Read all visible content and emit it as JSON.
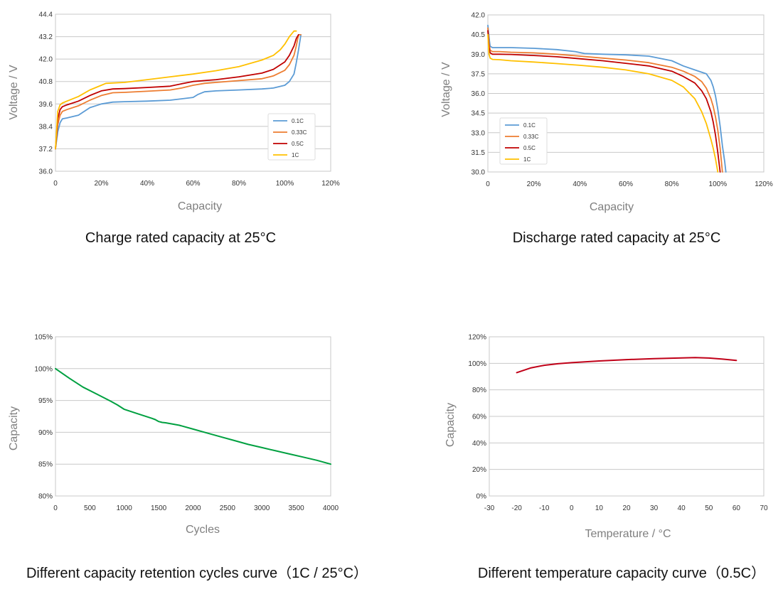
{
  "chart_data": [
    {
      "type": "line",
      "title": "",
      "caption": "Charge rated capacity at 25°C",
      "xlabel": "Capacity",
      "ylabel": "Voltage / V",
      "xlim": [
        0,
        120
      ],
      "ylim": [
        36.0,
        44.4
      ],
      "xticks": [
        "0",
        "20%",
        "40%",
        "60%",
        "80%",
        "100%",
        "120%"
      ],
      "yticks": [
        "36.0",
        "37.2",
        "38.4",
        "39.6",
        "40.8",
        "42.0",
        "43.2",
        "44.4"
      ],
      "grid": true,
      "legend": "bottom-right",
      "series": [
        {
          "name": "0.1C",
          "color": "#5b9bd5",
          "x": [
            0,
            1,
            2,
            3,
            5,
            10,
            15,
            20,
            25,
            30,
            40,
            50,
            60,
            62,
            65,
            70,
            80,
            90,
            95,
            100,
            102,
            104,
            105,
            106,
            107,
            107
          ],
          "y": [
            37.2,
            38.1,
            38.6,
            38.8,
            38.85,
            39.0,
            39.4,
            39.6,
            39.7,
            39.72,
            39.75,
            39.8,
            39.95,
            40.1,
            40.25,
            40.3,
            40.35,
            40.4,
            40.45,
            40.6,
            40.8,
            41.2,
            41.8,
            42.5,
            43.3,
            43.3
          ]
        },
        {
          "name": "0.33C",
          "color": "#ed7d31",
          "x": [
            0,
            1,
            2,
            3,
            5,
            10,
            15,
            20,
            25,
            30,
            40,
            50,
            55,
            60,
            65,
            70,
            80,
            90,
            95,
            100,
            102,
            104,
            105,
            106,
            107
          ],
          "y": [
            37.2,
            38.5,
            39.0,
            39.2,
            39.3,
            39.5,
            39.8,
            40.05,
            40.2,
            40.22,
            40.28,
            40.35,
            40.45,
            40.6,
            40.7,
            40.75,
            40.85,
            40.95,
            41.1,
            41.4,
            41.7,
            42.2,
            42.7,
            43.3,
            43.3
          ]
        },
        {
          "name": "0.5C",
          "color": "#c00000",
          "x": [
            0,
            1,
            2,
            3,
            5,
            10,
            15,
            20,
            25,
            30,
            40,
            50,
            55,
            60,
            65,
            70,
            80,
            90,
            95,
            100,
            102,
            104,
            105,
            106
          ],
          "y": [
            37.2,
            38.8,
            39.3,
            39.45,
            39.55,
            39.75,
            40.05,
            40.3,
            40.4,
            40.42,
            40.48,
            40.55,
            40.68,
            40.8,
            40.85,
            40.9,
            41.05,
            41.25,
            41.45,
            41.85,
            42.2,
            42.7,
            43.1,
            43.3
          ]
        },
        {
          "name": "1C",
          "color": "#ffc000",
          "x": [
            0,
            1,
            2,
            3,
            5,
            10,
            15,
            20,
            22,
            30,
            40,
            50,
            60,
            70,
            80,
            90,
            95,
            98,
            100,
            102,
            104,
            105
          ],
          "y": [
            37.2,
            39.2,
            39.55,
            39.65,
            39.75,
            40.0,
            40.35,
            40.6,
            40.7,
            40.75,
            40.9,
            41.05,
            41.2,
            41.38,
            41.6,
            41.95,
            42.2,
            42.5,
            42.8,
            43.2,
            43.5,
            43.5
          ]
        }
      ]
    },
    {
      "type": "line",
      "title": "",
      "caption": "Discharge rated capacity at 25°C",
      "xlabel": "Capacity",
      "ylabel": "Voltage / V",
      "xlim": [
        0,
        120
      ],
      "ylim": [
        30.0,
        42.0
      ],
      "xticks": [
        "0",
        "20%",
        "40%",
        "60%",
        "80%",
        "100%",
        "120%"
      ],
      "yticks": [
        "30.0",
        "31.5",
        "33.0",
        "34.5",
        "36.0",
        "37.5",
        "39.0",
        "40.5",
        "42.0"
      ],
      "grid": true,
      "legend": "bottom-left",
      "series": [
        {
          "name": "0.1C",
          "color": "#5b9bd5",
          "x": [
            0,
            0.5,
            1,
            2,
            5,
            10,
            20,
            30,
            38,
            42,
            50,
            60,
            70,
            80,
            85,
            90,
            95,
            97,
            98,
            99,
            100,
            101,
            102,
            103,
            103.5
          ],
          "y": [
            41.2,
            40.3,
            39.6,
            39.5,
            39.5,
            39.5,
            39.45,
            39.35,
            39.2,
            39.05,
            39.0,
            38.95,
            38.85,
            38.5,
            38.1,
            37.8,
            37.5,
            37.0,
            36.5,
            35.8,
            34.8,
            33.5,
            32.0,
            30.8,
            30.0
          ]
        },
        {
          "name": "0.33C",
          "color": "#ed7d31",
          "x": [
            0,
            0.5,
            1,
            2,
            5,
            10,
            20,
            30,
            40,
            50,
            60,
            70,
            80,
            85,
            90,
            93,
            95,
            97,
            98,
            99,
            100,
            101,
            102
          ],
          "y": [
            41.0,
            39.8,
            39.3,
            39.2,
            39.2,
            39.15,
            39.1,
            39.0,
            38.85,
            38.7,
            38.55,
            38.35,
            38.0,
            37.7,
            37.3,
            36.9,
            36.4,
            35.6,
            35.0,
            34.2,
            33.2,
            31.8,
            30.0
          ]
        },
        {
          "name": "0.5C",
          "color": "#c00000",
          "x": [
            0,
            0.5,
            1,
            2,
            5,
            10,
            20,
            30,
            40,
            50,
            60,
            70,
            80,
            85,
            90,
            93,
            95,
            97,
            98,
            99,
            100,
            101
          ],
          "y": [
            40.8,
            39.5,
            39.1,
            39.0,
            39.0,
            38.98,
            38.9,
            38.8,
            38.65,
            38.5,
            38.3,
            38.1,
            37.7,
            37.3,
            36.8,
            36.2,
            35.6,
            34.6,
            33.8,
            32.8,
            31.5,
            30.0
          ]
        },
        {
          "name": "1C",
          "color": "#ffc000",
          "x": [
            0,
            0.5,
            1,
            2,
            5,
            10,
            20,
            30,
            40,
            50,
            60,
            70,
            80,
            85,
            90,
            93,
            95,
            97,
            98,
            99,
            100
          ],
          "y": [
            40.5,
            39.0,
            38.7,
            38.6,
            38.58,
            38.5,
            38.4,
            38.28,
            38.15,
            38.0,
            37.8,
            37.5,
            37.0,
            36.5,
            35.6,
            34.6,
            33.7,
            32.5,
            31.8,
            31.0,
            30.0
          ]
        }
      ]
    },
    {
      "type": "line",
      "title": "",
      "caption": "Different capacity retention cycles curve（1C / 25°C）",
      "xlabel": "Cycles",
      "ylabel": "Capacity",
      "xlim": [
        0,
        4000
      ],
      "ylim": [
        80,
        105
      ],
      "xticks": [
        "0",
        "500",
        "1000",
        "1500",
        "2000",
        "2500",
        "3000",
        "3500",
        "4000"
      ],
      "yticks": [
        "80%",
        "85%",
        "90%",
        "95%",
        "100%",
        "105%"
      ],
      "grid": true,
      "series": [
        {
          "name": "",
          "color": "#00a040",
          "x": [
            0,
            200,
            400,
            600,
            800,
            900,
            1000,
            1200,
            1400,
            1450,
            1500,
            1550,
            1600,
            1800,
            2000,
            2200,
            2400,
            2600,
            2800,
            3000,
            3200,
            3400,
            3600,
            3800,
            4000
          ],
          "y": [
            100,
            98.5,
            97.1,
            96.0,
            94.9,
            94.3,
            93.6,
            92.9,
            92.2,
            92.0,
            91.7,
            91.55,
            91.5,
            91.1,
            90.5,
            89.9,
            89.3,
            88.7,
            88.1,
            87.6,
            87.1,
            86.6,
            86.1,
            85.6,
            85.0
          ]
        }
      ]
    },
    {
      "type": "line",
      "title": "",
      "caption": "Different temperature capacity curve（0.5C）",
      "xlabel": "Temperature / °C",
      "ylabel": "Capacity",
      "xlim": [
        -30,
        70
      ],
      "ylim": [
        0,
        120
      ],
      "xticks": [
        "-30",
        "-20",
        "-10",
        "0",
        "10",
        "20",
        "30",
        "40",
        "50",
        "60",
        "70"
      ],
      "yticks": [
        "0%",
        "20%",
        "40%",
        "60%",
        "80%",
        "100%",
        "120%"
      ],
      "grid": true,
      "series": [
        {
          "name": "",
          "color": "#c00018",
          "x": [
            -20,
            -15,
            -10,
            -5,
            0,
            10,
            20,
            30,
            40,
            45,
            50,
            55,
            60
          ],
          "y": [
            93,
            96.5,
            98.5,
            99.7,
            100.5,
            101.8,
            102.8,
            103.5,
            104.1,
            104.3,
            104.0,
            103.2,
            102.2
          ]
        }
      ]
    }
  ]
}
